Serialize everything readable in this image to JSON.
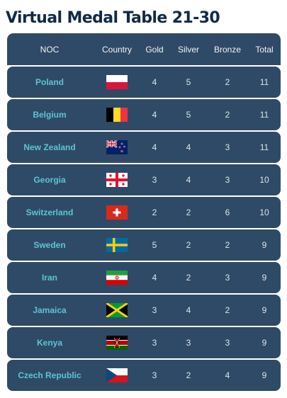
{
  "title": "Virtual Medal Table 21-30",
  "headers": {
    "noc": "NOC",
    "country": "Country",
    "gold": "Gold",
    "silver": "Silver",
    "bronze": "Bronze",
    "total": "Total"
  },
  "rows": [
    {
      "noc": "Poland",
      "flag": "poland-flag",
      "gold": "4",
      "silver": "5",
      "bronze": "2",
      "total": "11"
    },
    {
      "noc": "Belgium",
      "flag": "belgium-flag",
      "gold": "4",
      "silver": "5",
      "bronze": "2",
      "total": "11"
    },
    {
      "noc": "New Zealand",
      "flag": "new-zealand-flag",
      "gold": "4",
      "silver": "4",
      "bronze": "3",
      "total": "11"
    },
    {
      "noc": "Georgia",
      "flag": "georgia-flag",
      "gold": "3",
      "silver": "4",
      "bronze": "3",
      "total": "10"
    },
    {
      "noc": "Switzerland",
      "flag": "switzerland-flag",
      "gold": "2",
      "silver": "2",
      "bronze": "6",
      "total": "10"
    },
    {
      "noc": "Sweden",
      "flag": "sweden-flag",
      "gold": "5",
      "silver": "2",
      "bronze": "2",
      "total": "9"
    },
    {
      "noc": "Iran",
      "flag": "iran-flag",
      "gold": "4",
      "silver": "2",
      "bronze": "3",
      "total": "9"
    },
    {
      "noc": "Jamaica",
      "flag": "jamaica-flag",
      "gold": "3",
      "silver": "4",
      "bronze": "2",
      "total": "9"
    },
    {
      "noc": "Kenya",
      "flag": "kenya-flag",
      "gold": "3",
      "silver": "3",
      "bronze": "3",
      "total": "9"
    },
    {
      "noc": "Czech Republic",
      "flag": "czech-republic-flag",
      "gold": "3",
      "silver": "2",
      "bronze": "4",
      "total": "9"
    }
  ],
  "colors": {
    "title": "#112a45",
    "row_background": "#2f4a66",
    "noc_text": "#5ec4d4",
    "cell_text": "#dde4ec"
  }
}
